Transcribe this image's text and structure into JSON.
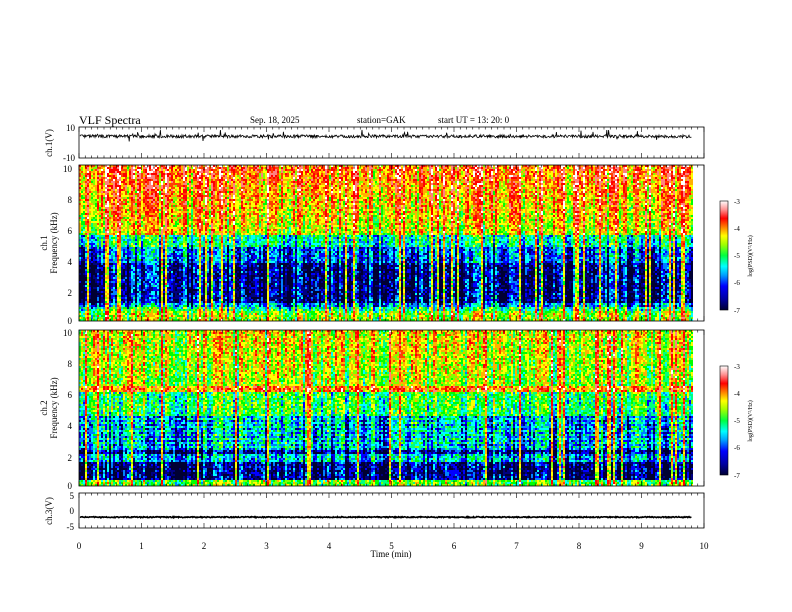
{
  "header": {
    "title": "VLF  Spectra",
    "date": "Sep. 18, 2025",
    "station": "station=GAK",
    "start": "start  UT  =    13: 20: 0"
  },
  "chart_data": [
    {
      "type": "line",
      "panel": "ch1-waveform",
      "ylabel": "ch.1(V)",
      "ylim": [
        -10,
        10
      ],
      "yticks": [
        "10",
        "-10"
      ],
      "baseline_value": 4,
      "noise_amplitude": 2
    },
    {
      "type": "heatmap",
      "panel": "ch1-spectrogram",
      "ylabel": "ch.1\nFrequency  (kHz)",
      "ylim": [
        0,
        10
      ],
      "yticks": [
        "0",
        "2",
        "4",
        "6",
        "8",
        "10"
      ],
      "colorbar": {
        "label": "log(PSD)(V²/Hz)",
        "range": [
          -7,
          -3
        ],
        "ticks": [
          "-3",
          "-4",
          "-5",
          "-6",
          "-7"
        ]
      }
    },
    {
      "type": "heatmap",
      "panel": "ch2-spectrogram",
      "ylabel": "ch.2\nFrequency  (kHz)",
      "ylim": [
        0,
        10
      ],
      "yticks": [
        "0",
        "2",
        "4",
        "6",
        "8",
        "10"
      ],
      "colorbar": {
        "label": "log(PSD)(V²/Hz)",
        "range": [
          -7,
          -3
        ],
        "ticks": [
          "-3",
          "-4",
          "-5",
          "-6",
          "-7"
        ]
      }
    },
    {
      "type": "line",
      "panel": "ch3-waveform",
      "ylabel": "ch.3(V)",
      "ylim": [
        -5,
        5
      ],
      "yticks": [
        "5",
        "0",
        "-5"
      ],
      "baseline_value": -1.9,
      "noise_amplitude": 0.3
    }
  ],
  "xaxis": {
    "label": "Time  (min)",
    "xlim": [
      0,
      10
    ],
    "data_end": 9.8,
    "ticks": [
      "0",
      "1",
      "2",
      "3",
      "4",
      "5",
      "6",
      "7",
      "8",
      "9",
      "10"
    ]
  },
  "colormap": [
    "#000033",
    "#000080",
    "#0000ff",
    "#0080ff",
    "#00ffff",
    "#00ff80",
    "#00ff00",
    "#80ff00",
    "#ffff00",
    "#ffb000",
    "#ff4000",
    "#ff0000",
    "#ff8080",
    "#ffffff"
  ]
}
